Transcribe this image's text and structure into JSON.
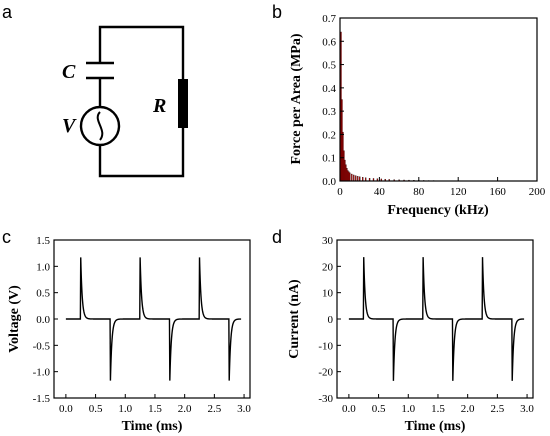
{
  "panels": {
    "a": "a",
    "b": "b",
    "c": "c",
    "d": "d"
  },
  "circuit": {
    "capacitor_label": "C",
    "source_label": "V",
    "resistor_label": "R"
  },
  "chart_data": [
    {
      "panel": "b",
      "type": "bar",
      "title": "",
      "xlabel": "Frequency (kHz)",
      "ylabel": "Force per Area (MPa)",
      "xlim": [
        0,
        200
      ],
      "ylim": [
        0,
        0.7
      ],
      "xticks": [
        "0",
        "40",
        "80",
        "120",
        "160",
        "200"
      ],
      "yticks": [
        "0.0",
        "0.1",
        "0.2",
        "0.3",
        "0.4",
        "0.5",
        "0.6",
        "0.7"
      ],
      "bar_color": "#cc0000",
      "x": [
        1,
        2,
        3,
        4,
        5,
        6,
        7,
        8,
        9,
        10,
        12,
        14,
        16,
        18,
        20,
        23,
        26,
        30,
        34,
        38,
        42,
        46,
        50,
        55,
        60,
        65,
        70,
        75,
        80,
        85,
        90,
        95,
        100
      ],
      "values": [
        0.64,
        0.35,
        0.21,
        0.13,
        0.09,
        0.07,
        0.055,
        0.045,
        0.04,
        0.035,
        0.03,
        0.026,
        0.023,
        0.02,
        0.018,
        0.016,
        0.014,
        0.012,
        0.011,
        0.01,
        0.009,
        0.008,
        0.007,
        0.006,
        0.005,
        0.0045,
        0.004,
        0.0035,
        0.003,
        0.0025,
        0.002,
        0.002,
        0.0015
      ]
    },
    {
      "panel": "c",
      "type": "line",
      "title": "",
      "xlabel": "Time (ms)",
      "ylabel": "Voltage (V)",
      "xlim": [
        -0.2,
        3.1
      ],
      "ylim": [
        -1.5,
        1.5
      ],
      "xticks": [
        "0.0",
        "0.5",
        "1.0",
        "1.5",
        "2.0",
        "2.5",
        "3.0"
      ],
      "yticks": [
        "-1.5",
        "-1.0",
        "-0.5",
        "0.0",
        "0.5",
        "1.0",
        "1.5"
      ],
      "baseline": 0,
      "positive_peak_times": [
        0.25,
        1.25,
        2.25
      ],
      "negative_peak_times": [
        0.75,
        1.75,
        2.75
      ],
      "peak_value": 1.17,
      "t_start": 0,
      "t_end": 2.95
    },
    {
      "panel": "d",
      "type": "line",
      "title": "",
      "xlabel": "Time (ms)",
      "ylabel": "Current (nA)",
      "xlim": [
        -0.2,
        3.1
      ],
      "ylim": [
        -30,
        30
      ],
      "xticks": [
        "0.0",
        "0.5",
        "1.0",
        "1.5",
        "2.0",
        "2.5",
        "3.0"
      ],
      "yticks": [
        "-30",
        "-20",
        "-10",
        "0",
        "10",
        "20",
        "30"
      ],
      "baseline": 0,
      "positive_peak_times": [
        0.25,
        1.25,
        2.25
      ],
      "negative_peak_times": [
        0.75,
        1.75,
        2.75
      ],
      "peak_value": 23.5,
      "t_start": 0,
      "t_end": 2.95
    }
  ]
}
